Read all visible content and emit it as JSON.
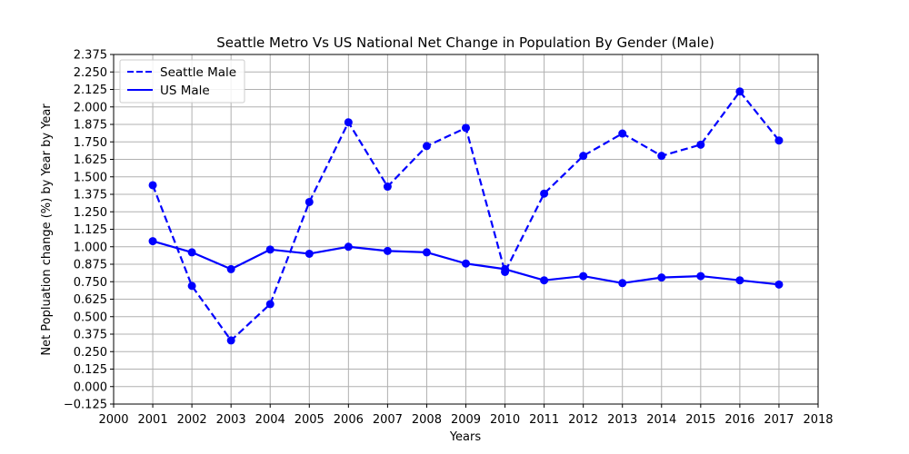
{
  "chart_data": {
    "type": "line",
    "title": "Seattle Metro Vs US National Net Change in Population By Gender (Male)",
    "xlabel": "Years",
    "ylabel": "Net Popluation change (%) by Year by Year",
    "xlim": [
      2000,
      2018
    ],
    "ylim": [
      -0.125,
      2.375
    ],
    "xticks": [
      2000,
      2001,
      2002,
      2003,
      2004,
      2005,
      2006,
      2007,
      2008,
      2009,
      2010,
      2011,
      2012,
      2013,
      2014,
      2015,
      2016,
      2017,
      2018
    ],
    "yticks": [
      -0.125,
      0.0,
      0.125,
      0.25,
      0.375,
      0.5,
      0.625,
      0.75,
      0.875,
      1.0,
      1.125,
      1.25,
      1.375,
      1.5,
      1.625,
      1.75,
      1.875,
      2.0,
      2.125,
      2.25,
      2.375
    ],
    "ytick_labels": [
      "−0.125",
      "0.000",
      "0.125",
      "0.250",
      "0.375",
      "0.500",
      "0.625",
      "0.750",
      "0.875",
      "1.000",
      "1.125",
      "1.250",
      "1.375",
      "1.500",
      "1.625",
      "1.750",
      "1.875",
      "2.000",
      "2.125",
      "2.250",
      "2.375"
    ],
    "grid": true,
    "legend_position": "top-left",
    "x": [
      2001,
      2002,
      2003,
      2004,
      2005,
      2006,
      2007,
      2008,
      2009,
      2010,
      2011,
      2012,
      2013,
      2014,
      2015,
      2016,
      2017
    ],
    "series": [
      {
        "name": "Seattle Male",
        "style": "dashed",
        "color": "#0000ff",
        "values": [
          1.44,
          0.72,
          0.33,
          0.59,
          1.32,
          1.89,
          1.43,
          1.72,
          1.85,
          0.82,
          1.38,
          1.65,
          1.81,
          1.65,
          1.73,
          2.11,
          1.76
        ]
      },
      {
        "name": "US Male",
        "style": "solid",
        "color": "#0000ff",
        "values": [
          1.04,
          0.96,
          0.84,
          0.98,
          0.95,
          1.0,
          0.97,
          0.96,
          0.88,
          0.84,
          0.76,
          0.79,
          0.74,
          0.78,
          0.79,
          0.76,
          0.73
        ]
      }
    ]
  }
}
